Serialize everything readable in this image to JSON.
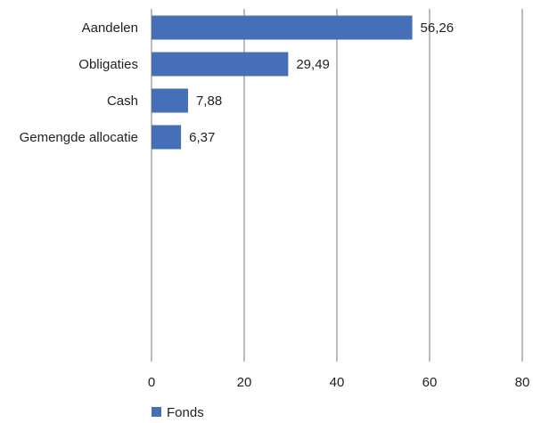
{
  "chart_data": {
    "type": "bar",
    "orientation": "horizontal",
    "categories": [
      "Aandelen",
      "Obligaties",
      "Cash",
      "Gemengde allocatie"
    ],
    "series": [
      {
        "name": "Fonds",
        "values": [
          56.26,
          29.49,
          7.88,
          6.37
        ],
        "value_labels": [
          "56,26",
          "29,49",
          "7,88",
          "6,37"
        ],
        "color": "#4570b8"
      }
    ],
    "xlim": [
      0,
      80
    ],
    "xticks": [
      0,
      20,
      40,
      60,
      80
    ],
    "xtick_labels": [
      "0",
      "20",
      "40",
      "60",
      "80"
    ],
    "grid": true,
    "legend_position": "bottom-left"
  }
}
